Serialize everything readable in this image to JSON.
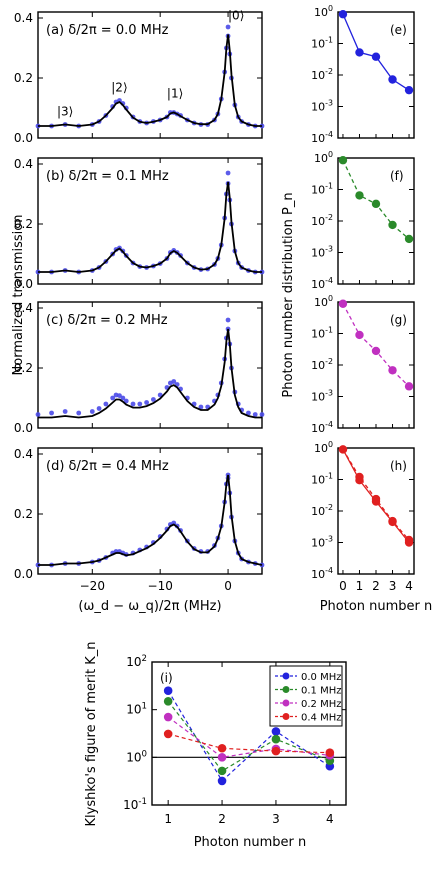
{
  "chart_data": [
    {
      "type": "line",
      "panel": "(a)",
      "annotation": "(a) δ/2π = 0.0 MHz",
      "peak_labels": [
        "|3⟩",
        "|2⟩",
        "|1⟩",
        "|0⟩"
      ],
      "ylabel": "Normalized transmission",
      "xlim": [
        -28,
        5
      ],
      "ylim": [
        0,
        0.42
      ],
      "yticks": [
        "0.0",
        "0.2",
        "0.4"
      ],
      "series": [
        {
          "style": "points",
          "color": "#4a4ae8",
          "x": [
            -28,
            -26,
            -24,
            -22,
            -20,
            -19,
            -18,
            -17,
            -16.5,
            -16,
            -15.5,
            -15,
            -14,
            -13,
            -12,
            -11,
            -10,
            -9,
            -8.5,
            -8,
            -7.5,
            -7,
            -6,
            -5,
            -4,
            -3,
            -2,
            -1.5,
            -1,
            -0.5,
            -0.25,
            0,
            0.25,
            0.5,
            1,
            1.5,
            2,
            3,
            4,
            5
          ],
          "y": [
            0.04,
            0.04,
            0.045,
            0.04,
            0.045,
            0.055,
            0.075,
            0.105,
            0.12,
            0.125,
            0.115,
            0.1,
            0.07,
            0.055,
            0.05,
            0.055,
            0.06,
            0.07,
            0.085,
            0.085,
            0.08,
            0.075,
            0.06,
            0.05,
            0.045,
            0.045,
            0.06,
            0.08,
            0.13,
            0.22,
            0.3,
            0.34,
            0.28,
            0.2,
            0.11,
            0.07,
            0.055,
            0.045,
            0.04,
            0.04
          ]
        },
        {
          "style": "point",
          "color": "#4a4ae8",
          "x": [
            0
          ],
          "y": [
            0.37
          ]
        },
        {
          "style": "line",
          "color": "#000000",
          "x": [
            -28,
            -26,
            -24,
            -22,
            -20,
            -19,
            -18,
            -17,
            -16.5,
            -16,
            -15.5,
            -15,
            -14,
            -13,
            -12,
            -11,
            -10,
            -9,
            -8.5,
            -8,
            -7.5,
            -7,
            -6,
            -5,
            -4,
            -3,
            -2,
            -1.5,
            -1,
            -0.5,
            -0.25,
            0,
            0.25,
            0.5,
            1,
            1.5,
            2,
            3,
            4,
            5
          ],
          "y": [
            0.04,
            0.04,
            0.045,
            0.04,
            0.045,
            0.055,
            0.075,
            0.1,
            0.115,
            0.12,
            0.11,
            0.095,
            0.068,
            0.054,
            0.05,
            0.054,
            0.06,
            0.07,
            0.082,
            0.085,
            0.08,
            0.073,
            0.06,
            0.05,
            0.046,
            0.046,
            0.06,
            0.08,
            0.13,
            0.22,
            0.3,
            0.345,
            0.29,
            0.21,
            0.11,
            0.07,
            0.055,
            0.045,
            0.04,
            0.04
          ]
        }
      ]
    },
    {
      "type": "line",
      "panel": "(b)",
      "annotation": "(b) δ/2π = 0.1 MHz",
      "xlim": [
        -28,
        5
      ],
      "ylim": [
        0,
        0.42
      ],
      "yticks": [
        "0.0",
        "0.2",
        "0.4"
      ],
      "series": [
        {
          "style": "points",
          "color": "#4a4ae8",
          "x": [
            -28,
            -26,
            -24,
            -22,
            -20,
            -19,
            -18,
            -17,
            -16.5,
            -16,
            -15.5,
            -15,
            -14,
            -13,
            -12,
            -11,
            -10,
            -9,
            -8.5,
            -8,
            -7.5,
            -7,
            -6,
            -5,
            -4,
            -3,
            -2,
            -1.5,
            -1,
            -0.5,
            -0.25,
            0,
            0.25,
            0.5,
            1,
            1.5,
            2,
            3,
            4,
            5
          ],
          "y": [
            0.04,
            0.04,
            0.045,
            0.04,
            0.045,
            0.055,
            0.075,
            0.1,
            0.115,
            0.12,
            0.11,
            0.095,
            0.07,
            0.058,
            0.055,
            0.06,
            0.068,
            0.085,
            0.105,
            0.112,
            0.105,
            0.095,
            0.07,
            0.055,
            0.048,
            0.05,
            0.065,
            0.085,
            0.13,
            0.22,
            0.3,
            0.335,
            0.28,
            0.2,
            0.11,
            0.07,
            0.055,
            0.045,
            0.04,
            0.04
          ]
        },
        {
          "style": "point",
          "color": "#4a4ae8",
          "x": [
            0
          ],
          "y": [
            0.37
          ]
        },
        {
          "style": "line",
          "color": "#000000",
          "x": [
            -28,
            -26,
            -24,
            -22,
            -20,
            -19,
            -18,
            -17,
            -16.5,
            -16,
            -15.5,
            -15,
            -14,
            -13,
            -12,
            -11,
            -10,
            -9,
            -8.5,
            -8,
            -7.5,
            -7,
            -6,
            -5,
            -4,
            -3,
            -2,
            -1.5,
            -1,
            -0.5,
            -0.25,
            0,
            0.25,
            0.5,
            1,
            1.5,
            2,
            3,
            4,
            5
          ],
          "y": [
            0.04,
            0.04,
            0.045,
            0.04,
            0.045,
            0.055,
            0.075,
            0.1,
            0.112,
            0.118,
            0.108,
            0.094,
            0.07,
            0.058,
            0.055,
            0.06,
            0.068,
            0.085,
            0.103,
            0.11,
            0.104,
            0.093,
            0.07,
            0.055,
            0.048,
            0.05,
            0.065,
            0.085,
            0.13,
            0.22,
            0.3,
            0.34,
            0.285,
            0.205,
            0.11,
            0.07,
            0.055,
            0.045,
            0.04,
            0.04
          ]
        }
      ]
    },
    {
      "type": "line",
      "panel": "(c)",
      "annotation": "(c) δ/2π = 0.2 MHz",
      "xlim": [
        -28,
        5
      ],
      "ylim": [
        0,
        0.42
      ],
      "yticks": [
        "0.0",
        "0.2",
        "0.4"
      ],
      "series": [
        {
          "style": "points",
          "color": "#4a4ae8",
          "x": [
            -28,
            -26,
            -24,
            -22,
            -20,
            -19,
            -18,
            -17,
            -16.5,
            -16,
            -15.5,
            -15,
            -14,
            -13,
            -12,
            -11,
            -10,
            -9,
            -8.5,
            -8,
            -7.5,
            -7,
            -6,
            -5,
            -4,
            -3,
            -2,
            -1.5,
            -1,
            -0.5,
            -0.25,
            0,
            0.25,
            0.5,
            1,
            1.5,
            2,
            3,
            4,
            5
          ],
          "y": [
            0.045,
            0.05,
            0.055,
            0.05,
            0.055,
            0.065,
            0.08,
            0.1,
            0.11,
            0.108,
            0.1,
            0.09,
            0.08,
            0.08,
            0.085,
            0.095,
            0.11,
            0.135,
            0.15,
            0.155,
            0.145,
            0.13,
            0.1,
            0.08,
            0.07,
            0.07,
            0.09,
            0.11,
            0.15,
            0.23,
            0.3,
            0.33,
            0.28,
            0.2,
            0.12,
            0.08,
            0.06,
            0.05,
            0.045,
            0.045
          ]
        },
        {
          "style": "point",
          "color": "#4a4ae8",
          "x": [
            0
          ],
          "y": [
            0.36
          ]
        },
        {
          "style": "line",
          "color": "#000000",
          "x": [
            -28,
            -26,
            -24,
            -22,
            -20,
            -19,
            -18,
            -17,
            -16.5,
            -16,
            -15.5,
            -15,
            -14,
            -13,
            -12,
            -11,
            -10,
            -9,
            -8.5,
            -8,
            -7.5,
            -7,
            -6,
            -5,
            -4,
            -3,
            -2,
            -1.5,
            -1,
            -0.5,
            -0.25,
            0,
            0.25,
            0.5,
            1,
            1.5,
            2,
            3,
            4,
            5
          ],
          "y": [
            0.035,
            0.035,
            0.04,
            0.035,
            0.04,
            0.05,
            0.065,
            0.085,
            0.095,
            0.095,
            0.088,
            0.078,
            0.068,
            0.068,
            0.073,
            0.083,
            0.098,
            0.122,
            0.138,
            0.143,
            0.135,
            0.12,
            0.09,
            0.07,
            0.06,
            0.06,
            0.078,
            0.1,
            0.14,
            0.22,
            0.29,
            0.33,
            0.28,
            0.2,
            0.11,
            0.07,
            0.05,
            0.04,
            0.035,
            0.035
          ]
        }
      ]
    },
    {
      "type": "line",
      "panel": "(d)",
      "annotation": "(d) δ/2π = 0.4 MHz",
      "xlabel": "(ω_d − ω_q)/2π (MHz)",
      "xlim": [
        -28,
        5
      ],
      "xticks": [
        "−20",
        "−10",
        "0"
      ],
      "ylim": [
        0,
        0.42
      ],
      "yticks": [
        "0.0",
        "0.2",
        "0.4"
      ],
      "series": [
        {
          "style": "points",
          "color": "#4a4ae8",
          "x": [
            -28,
            -26,
            -24,
            -22,
            -20,
            -19,
            -18,
            -17,
            -16.5,
            -16,
            -15.5,
            -15,
            -14,
            -13,
            -12,
            -11,
            -10,
            -9,
            -8.5,
            -8,
            -7.5,
            -7,
            -6,
            -5,
            -4,
            -3,
            -2,
            -1.5,
            -1,
            -0.5,
            -0.25,
            0,
            0.25,
            0.5,
            1,
            1.5,
            2,
            3,
            4,
            5
          ],
          "y": [
            0.03,
            0.03,
            0.035,
            0.035,
            0.04,
            0.045,
            0.055,
            0.07,
            0.075,
            0.075,
            0.07,
            0.065,
            0.07,
            0.08,
            0.09,
            0.105,
            0.125,
            0.15,
            0.165,
            0.17,
            0.16,
            0.145,
            0.11,
            0.085,
            0.075,
            0.075,
            0.095,
            0.12,
            0.16,
            0.24,
            0.3,
            0.32,
            0.27,
            0.19,
            0.11,
            0.07,
            0.05,
            0.04,
            0.035,
            0.03
          ]
        },
        {
          "style": "point",
          "color": "#4a4ae8",
          "x": [
            0
          ],
          "y": [
            0.33
          ]
        },
        {
          "style": "line",
          "color": "#000000",
          "x": [
            -28,
            -26,
            -24,
            -22,
            -20,
            -19,
            -18,
            -17,
            -16.5,
            -16,
            -15.5,
            -15,
            -14,
            -13,
            -12,
            -11,
            -10,
            -9,
            -8.5,
            -8,
            -7.5,
            -7,
            -6,
            -5,
            -4,
            -3,
            -2,
            -1.5,
            -1,
            -0.5,
            -0.25,
            0,
            0.25,
            0.5,
            1,
            1.5,
            2,
            3,
            4,
            5
          ],
          "y": [
            0.03,
            0.03,
            0.035,
            0.035,
            0.04,
            0.045,
            0.055,
            0.065,
            0.07,
            0.07,
            0.066,
            0.062,
            0.066,
            0.076,
            0.086,
            0.1,
            0.12,
            0.145,
            0.16,
            0.165,
            0.157,
            0.142,
            0.108,
            0.083,
            0.072,
            0.072,
            0.092,
            0.118,
            0.158,
            0.24,
            0.3,
            0.33,
            0.275,
            0.195,
            0.11,
            0.07,
            0.05,
            0.04,
            0.035,
            0.03
          ]
        }
      ]
    },
    {
      "type": "line",
      "panel": "(e)",
      "annotation": "(e)",
      "yscale": "log",
      "ylim": [
        0.0001,
        1
      ],
      "xlim": [
        -0.3,
        4.3
      ],
      "yticks": [
        "10^0",
        "10^-1",
        "10^-2",
        "10^-3",
        "10^-4"
      ],
      "series": [
        {
          "style": "solid",
          "color": "#2222dd",
          "x": [
            0,
            1,
            2,
            3,
            4
          ],
          "y": [
            0.85,
            0.052,
            0.038,
            0.0072,
            0.0033
          ]
        }
      ]
    },
    {
      "type": "line",
      "panel": "(f)",
      "annotation": "(f)",
      "yscale": "log",
      "ylabel": "Photon number distribution P_n",
      "ylim": [
        0.0001,
        1
      ],
      "xlim": [
        -0.3,
        4.3
      ],
      "yticks": [
        "10^0",
        "10^-1",
        "10^-2",
        "10^-3",
        "10^-4"
      ],
      "series": [
        {
          "style": "dashed",
          "color": "#2a8a2a",
          "x": [
            0,
            1,
            2,
            3,
            4
          ],
          "y": [
            0.85,
            0.065,
            0.035,
            0.0075,
            0.0027
          ]
        }
      ]
    },
    {
      "type": "line",
      "panel": "(g)",
      "annotation": "(g)",
      "yscale": "log",
      "ylim": [
        0.0001,
        1
      ],
      "xlim": [
        -0.3,
        4.3
      ],
      "yticks": [
        "10^0",
        "10^-1",
        "10^-2",
        "10^-3",
        "10^-4"
      ],
      "series": [
        {
          "style": "dashed",
          "color": "#c030c0",
          "x": [
            0,
            1,
            2,
            3,
            4
          ],
          "y": [
            0.88,
            0.09,
            0.028,
            0.0068,
            0.0021
          ]
        }
      ]
    },
    {
      "type": "line",
      "panel": "(h)",
      "annotation": "(h)",
      "yscale": "log",
      "xlabel": "Photon number n",
      "xticks": [
        "0",
        "1",
        "2",
        "3",
        "4"
      ],
      "ylim": [
        0.0001,
        1
      ],
      "xlim": [
        -0.3,
        4.3
      ],
      "yticks": [
        "10^0",
        "10^-1",
        "10^-2",
        "10^-3",
        "10^-4"
      ],
      "series": [
        {
          "style": "dashed",
          "color": "#e02020",
          "x": [
            0,
            1,
            2,
            3,
            4
          ],
          "y": [
            0.9,
            0.12,
            0.024,
            0.0048,
            0.0012
          ]
        },
        {
          "style": "solid",
          "color": "#e02020",
          "x": [
            0,
            1,
            2,
            3,
            4
          ],
          "y": [
            0.9,
            0.095,
            0.02,
            0.0045,
            0.001
          ]
        }
      ]
    },
    {
      "type": "line",
      "panel": "(i)",
      "annotation": "(i)",
      "yscale": "log",
      "xlabel": "Photon number n",
      "ylabel": "Klyshko's figure of merit K_n",
      "xticks": [
        "1",
        "2",
        "3",
        "4"
      ],
      "yticks": [
        "10^2",
        "10^1",
        "10^0",
        "10^-1"
      ],
      "xlim": [
        0.7,
        4.3
      ],
      "ylim": [
        0.1,
        100
      ],
      "reference_line": 1,
      "legend_position": "top-right",
      "series": [
        {
          "name": "0.0 MHz",
          "color": "#2222dd",
          "x": [
            1,
            2,
            3,
            4
          ],
          "y": [
            25,
            0.32,
            3.5,
            0.65
          ]
        },
        {
          "name": "0.1 MHz",
          "color": "#2a8a2a",
          "x": [
            1,
            2,
            3,
            4
          ],
          "y": [
            15,
            0.52,
            2.4,
            0.85
          ]
        },
        {
          "name": "0.2 MHz",
          "color": "#c030c0",
          "x": [
            1,
            2,
            3,
            4
          ],
          "y": [
            7,
            1.0,
            1.5,
            1.1
          ]
        },
        {
          "name": "0.4 MHz",
          "color": "#e02020",
          "x": [
            1,
            2,
            3,
            4
          ],
          "y": [
            3.1,
            1.55,
            1.35,
            1.25
          ]
        }
      ]
    }
  ]
}
